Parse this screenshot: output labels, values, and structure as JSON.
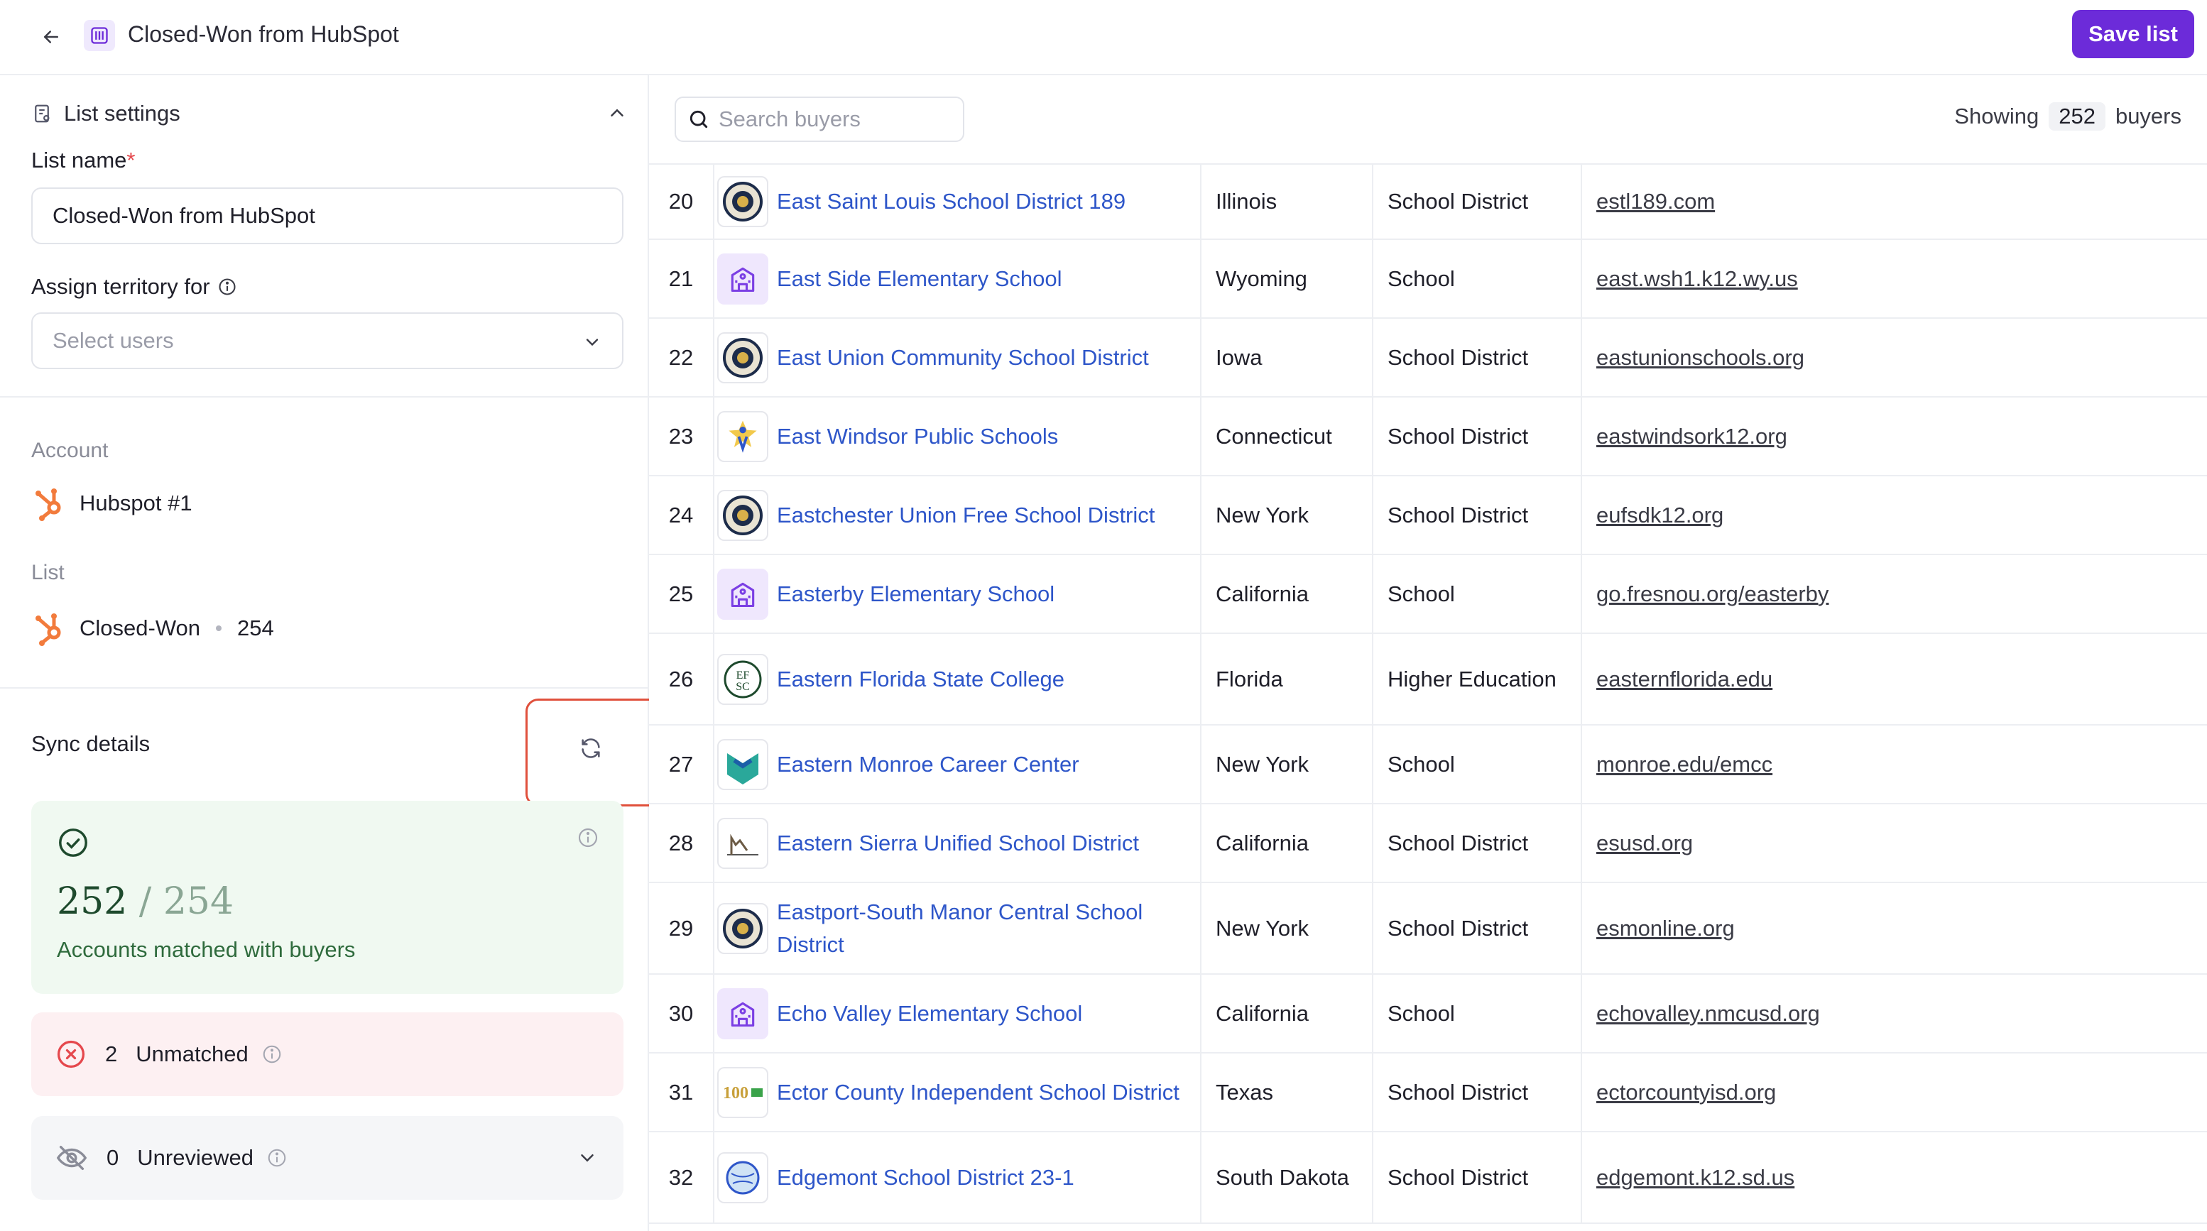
{
  "header": {
    "title": "Closed-Won from HubSpot",
    "save_label": "Save list",
    "icons": {
      "back": "arrow-left-icon",
      "list": "list-icon"
    },
    "accent_color": "#6c2bd9"
  },
  "sidebar": {
    "list_settings_label": "List settings",
    "list_name_label": "List name",
    "required_mark": "*",
    "list_name_value": "Closed-Won from HubSpot",
    "assign_label": "Assign territory for",
    "assign_placeholder": "Select users",
    "account_label": "Account",
    "account_value": "Hubspot #1",
    "list_label": "List",
    "list_value": "Closed-Won",
    "list_count": "254",
    "sync_title": "Sync details",
    "matched": {
      "numerator": "252",
      "separator": " / ",
      "denominator": "254",
      "text": "Accounts matched with buyers"
    },
    "unmatched": {
      "count": "2",
      "label": "Unmatched"
    },
    "unreviewed": {
      "count": "0",
      "label": "Unreviewed"
    },
    "status_colors": {
      "matched": "#2f6b3d",
      "unmatched": "#e5484d",
      "unreviewed": "#8a8c98"
    }
  },
  "main": {
    "search_placeholder": "Search buyers",
    "showing_prefix": "Showing",
    "showing_count": "252",
    "showing_suffix": "buyers",
    "rows": [
      {
        "num": "20",
        "name": "East Saint Louis School District 189",
        "state": "Illinois",
        "type": "School District",
        "url": "estl189.com",
        "logo": "district-seal"
      },
      {
        "num": "21",
        "name": "East Side Elementary School",
        "state": "Wyoming",
        "type": "School",
        "url": "east.wsh1.k12.wy.us",
        "logo": "school-building"
      },
      {
        "num": "22",
        "name": "East Union Community School District",
        "state": "Iowa",
        "type": "School District",
        "url": "eastunionschools.org",
        "logo": "district-seal"
      },
      {
        "num": "23",
        "name": "East Windsor Public Schools",
        "state": "Connecticut",
        "type": "School District",
        "url": "eastwindsork12.org",
        "logo": "star-figure"
      },
      {
        "num": "24",
        "name": "Eastchester Union Free School District",
        "state": "New York",
        "type": "School District",
        "url": "eufsdk12.org",
        "logo": "district-seal"
      },
      {
        "num": "25",
        "name": "Easterby Elementary School",
        "state": "California",
        "type": "School",
        "url": "go.fresnou.org/easterby",
        "logo": "school-building"
      },
      {
        "num": "26",
        "name": "Eastern Florida State College",
        "state": "Florida",
        "type": "Higher Education",
        "url": "easternflorida.edu",
        "logo": "monogram-seal"
      },
      {
        "num": "27",
        "name": "Eastern Monroe Career Center",
        "state": "New York",
        "type": "School",
        "url": "monroe.edu/emcc",
        "logo": "chevron-shield"
      },
      {
        "num": "28",
        "name": "Eastern Sierra Unified School District",
        "state": "California",
        "type": "School District",
        "url": "esusd.org",
        "logo": "mountain-sketch"
      },
      {
        "num": "29",
        "name": "Eastport-South Manor Central School District",
        "state": "New York",
        "type": "School District",
        "url": "esmonline.org",
        "logo": "district-seal"
      },
      {
        "num": "30",
        "name": "Echo Valley Elementary School",
        "state": "California",
        "type": "School",
        "url": "echovalley.nmcusd.org",
        "logo": "school-building"
      },
      {
        "num": "31",
        "name": "Ector County Independent School District",
        "state": "Texas",
        "type": "School District",
        "url": "ectorcountyisd.org",
        "logo": "wordmark"
      },
      {
        "num": "32",
        "name": "Edgemont School District 23-1",
        "state": "South Dakota",
        "type": "School District",
        "url": "edgemont.k12.sd.us",
        "logo": "globe"
      }
    ]
  }
}
